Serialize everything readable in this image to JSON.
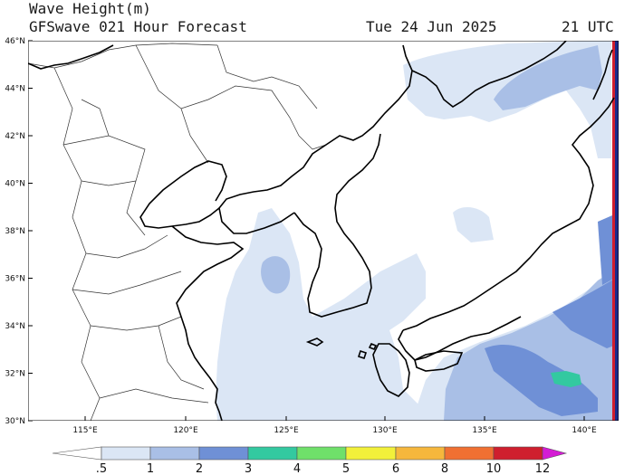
{
  "header": {
    "title": "Wave Height(m)",
    "subtitle": "GFSwave 021 Hour Forecast",
    "date": "Tue 24 Jun 2025",
    "time": "21 UTC"
  },
  "map": {
    "lat_labels": [
      "46°N",
      "44°N",
      "42°N",
      "40°N",
      "38°N",
      "36°N",
      "34°N",
      "32°N",
      "30°N"
    ],
    "lon_labels": [
      "115°E",
      "120°E",
      "125°E",
      "130°E",
      "135°E",
      "140°E"
    ],
    "lat_range": [
      30,
      46
    ],
    "lon_range": [
      111,
      142
    ],
    "fill_colors": {
      "lt_0_5": "#ffffff",
      "0_5_1": "#dbe6f5",
      "1_2": "#a9bfe6",
      "2_3": "#6f90d6",
      "3_4": "#33c9a0",
      "4_5": "#6fe06a",
      "5_6": "#f2f03a",
      "6_8": "#f6b73c",
      "8_10": "#f07032",
      "10_12": "#cf1f2e",
      "gt_12": "#d41cd4"
    }
  },
  "colorbar": {
    "labels": [
      ".5",
      "1",
      "2",
      "3",
      "4",
      "5",
      "6",
      "8",
      "10",
      "12"
    ],
    "colors": [
      "#ffffff",
      "#dbe6f5",
      "#a9bfe6",
      "#6f90d6",
      "#33c9a0",
      "#6fe06a",
      "#f2f03a",
      "#f6b73c",
      "#f07032",
      "#cf1f2e",
      "#d41cd4"
    ]
  }
}
